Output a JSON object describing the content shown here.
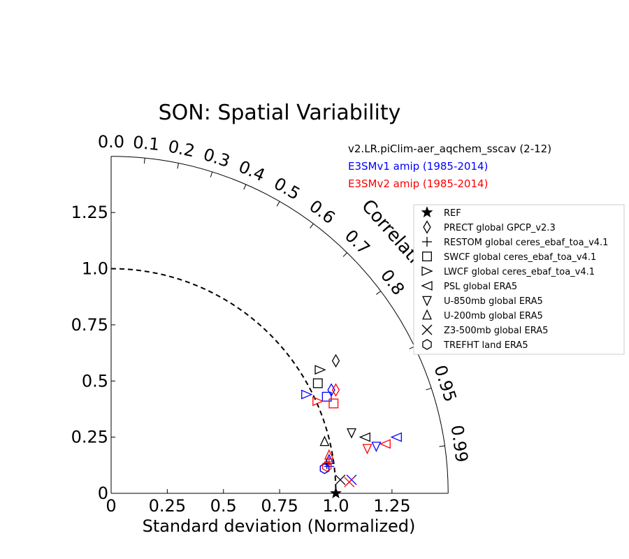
{
  "chart_data": {
    "type": "scatter",
    "title": "SON: Spatial Variability",
    "xlabel": "Standard deviation (Normalized)",
    "std_ticks": [
      "0",
      "0.25",
      "0.5",
      "0.75",
      "1.0",
      "1.25"
    ],
    "std_max": 1.5,
    "correlation_label": "Correlation",
    "correlation_ticks": [
      "0.0",
      "0.1",
      "0.2",
      "0.3",
      "0.4",
      "0.5",
      "0.6",
      "0.7",
      "0.8",
      "0.9",
      "0.95",
      "0.99"
    ],
    "models": [
      {
        "name": "v2.LR.piClim-aer_aqchem_sscav (2-12)",
        "color": "#000000"
      },
      {
        "name": "E3SMv1 amip (1985-2014)",
        "color": "#0000ff"
      },
      {
        "name": "E3SMv2 amip (1985-2014)",
        "color": "#ff0000"
      }
    ],
    "legend": [
      {
        "label": "REF",
        "marker": "star"
      },
      {
        "label": "PRECT global GPCP_v2.3",
        "marker": "diamond"
      },
      {
        "label": "RESTOM global ceres_ebaf_toa_v4.1",
        "marker": "plus"
      },
      {
        "label": "SWCF global ceres_ebaf_toa_v4.1",
        "marker": "square"
      },
      {
        "label": "LWCF global ceres_ebaf_toa_v4.1",
        "marker": "triangle-right"
      },
      {
        "label": "PSL global ERA5",
        "marker": "triangle-left"
      },
      {
        "label": "U-850mb global ERA5",
        "marker": "triangle-down"
      },
      {
        "label": "U-200mb global ERA5",
        "marker": "triangle-up"
      },
      {
        "label": "Z3-500mb global ERA5",
        "marker": "x"
      },
      {
        "label": "TREFHT land ERA5",
        "marker": "hexagon"
      }
    ],
    "legend_location": "right",
    "points": [
      {
        "model": 0,
        "marker": "star",
        "x": 1.0,
        "y": 0.0
      },
      {
        "model": 0,
        "marker": "diamond",
        "x": 1.0,
        "y": 0.59
      },
      {
        "model": 1,
        "marker": "diamond",
        "x": 0.98,
        "y": 0.46
      },
      {
        "model": 2,
        "marker": "diamond",
        "x": 1.0,
        "y": 0.46
      },
      {
        "model": 0,
        "marker": "square",
        "x": 0.92,
        "y": 0.49
      },
      {
        "model": 1,
        "marker": "square",
        "x": 0.96,
        "y": 0.43
      },
      {
        "model": 2,
        "marker": "square",
        "x": 0.99,
        "y": 0.4
      },
      {
        "model": 0,
        "marker": "triangle-right",
        "x": 0.93,
        "y": 0.55
      },
      {
        "model": 1,
        "marker": "triangle-right",
        "x": 0.87,
        "y": 0.44
      },
      {
        "model": 2,
        "marker": "triangle-right",
        "x": 0.92,
        "y": 0.41
      },
      {
        "model": 0,
        "marker": "triangle-left",
        "x": 1.13,
        "y": 0.25
      },
      {
        "model": 1,
        "marker": "triangle-left",
        "x": 1.27,
        "y": 0.25
      },
      {
        "model": 2,
        "marker": "triangle-left",
        "x": 1.22,
        "y": 0.22
      },
      {
        "model": 0,
        "marker": "triangle-down",
        "x": 1.07,
        "y": 0.27
      },
      {
        "model": 1,
        "marker": "triangle-down",
        "x": 1.18,
        "y": 0.21
      },
      {
        "model": 2,
        "marker": "triangle-down",
        "x": 1.14,
        "y": 0.2
      },
      {
        "model": 0,
        "marker": "triangle-up",
        "x": 0.95,
        "y": 0.23
      },
      {
        "model": 1,
        "marker": "triangle-up",
        "x": 0.97,
        "y": 0.15
      },
      {
        "model": 2,
        "marker": "triangle-up",
        "x": 0.97,
        "y": 0.17
      },
      {
        "model": 0,
        "marker": "plus",
        "x": 0.96,
        "y": 0.13
      },
      {
        "model": 1,
        "marker": "plus",
        "x": 0.97,
        "y": 0.12
      },
      {
        "model": 2,
        "marker": "plus",
        "x": 0.97,
        "y": 0.14
      },
      {
        "model": 0,
        "marker": "x",
        "x": 1.02,
        "y": 0.06
      },
      {
        "model": 1,
        "marker": "x",
        "x": 1.07,
        "y": 0.06
      },
      {
        "model": 2,
        "marker": "x",
        "x": 1.06,
        "y": 0.05
      },
      {
        "model": 0,
        "marker": "hexagon",
        "x": 0.95,
        "y": 0.11
      },
      {
        "model": 1,
        "marker": "hexagon",
        "x": 0.95,
        "y": 0.11
      },
      {
        "model": 2,
        "marker": "hexagon",
        "x": 0.96,
        "y": 0.12
      }
    ]
  }
}
